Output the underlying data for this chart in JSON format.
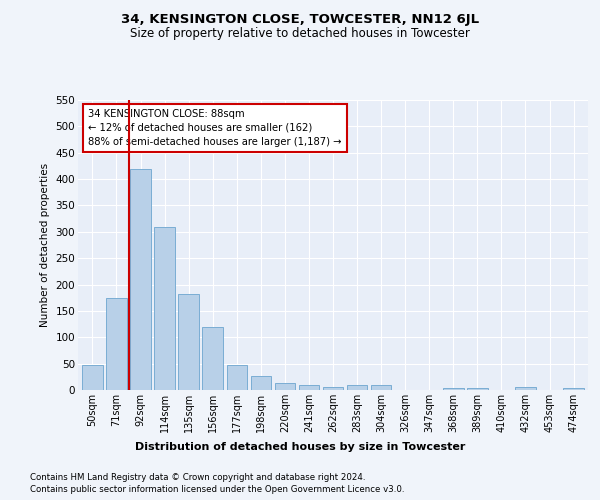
{
  "title": "34, KENSINGTON CLOSE, TOWCESTER, NN12 6JL",
  "subtitle": "Size of property relative to detached houses in Towcester",
  "xlabel": "Distribution of detached houses by size in Towcester",
  "ylabel": "Number of detached properties",
  "categories": [
    "50sqm",
    "71sqm",
    "92sqm",
    "114sqm",
    "135sqm",
    "156sqm",
    "177sqm",
    "198sqm",
    "220sqm",
    "241sqm",
    "262sqm",
    "283sqm",
    "304sqm",
    "326sqm",
    "347sqm",
    "368sqm",
    "389sqm",
    "410sqm",
    "432sqm",
    "453sqm",
    "474sqm"
  ],
  "values": [
    47,
    175,
    420,
    310,
    183,
    120,
    47,
    27,
    13,
    9,
    6,
    10,
    10,
    0,
    0,
    4,
    4,
    0,
    6,
    0,
    4
  ],
  "bar_color": "#b8d0e8",
  "bar_edge_color": "#7aadd4",
  "vline_x": 1.5,
  "vline_color": "#cc0000",
  "annotation_text": "34 KENSINGTON CLOSE: 88sqm\n← 12% of detached houses are smaller (162)\n88% of semi-detached houses are larger (1,187) →",
  "annotation_box_color": "#ffffff",
  "annotation_box_edge": "#cc0000",
  "ylim": [
    0,
    550
  ],
  "yticks": [
    0,
    50,
    100,
    150,
    200,
    250,
    300,
    350,
    400,
    450,
    500,
    550
  ],
  "footer1": "Contains HM Land Registry data © Crown copyright and database right 2024.",
  "footer2": "Contains public sector information licensed under the Open Government Licence v3.0.",
  "bg_color": "#f0f4fa",
  "plot_bg_color": "#e8eef8"
}
